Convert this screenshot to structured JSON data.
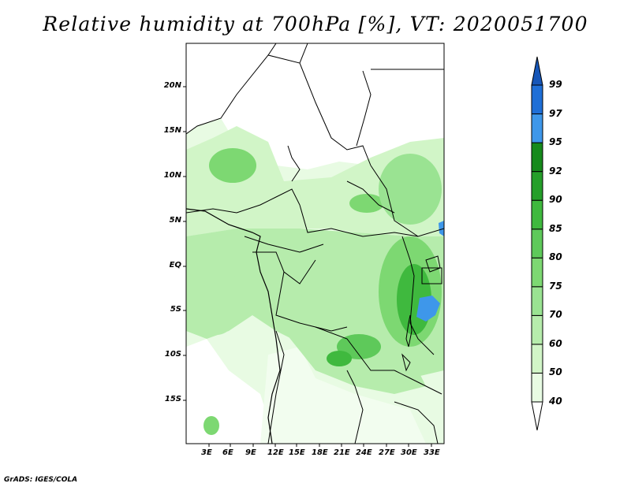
{
  "title": "Relative humidity at 700hPa [%], VT: 2020051700",
  "credit": "GrADS: IGES/COLA",
  "map": {
    "lat_labels": [
      "20N",
      "15N",
      "10N",
      "5N",
      "EQ",
      "5S",
      "10S",
      "15S"
    ],
    "lon_labels": [
      "3E",
      "6E",
      "9E",
      "12E",
      "15E",
      "18E",
      "21E",
      "24E",
      "27E",
      "30E",
      "33E"
    ],
    "lon_range": [
      0,
      34.5
    ],
    "lat_range": [
      -19.5,
      24.5
    ]
  },
  "colorbar": {
    "levels": [
      "40",
      "50",
      "60",
      "70",
      "75",
      "80",
      "85",
      "90",
      "92",
      "95",
      "97",
      "99"
    ],
    "colors": [
      "#ffffff",
      "#e8fbe3",
      "#d1f5c7",
      "#b6ecac",
      "#9ae392",
      "#7dd872",
      "#5ec95a",
      "#3fb93e",
      "#259f2a",
      "#168a1c",
      "#3e97ea",
      "#1f6fd7",
      "#1656b8"
    ]
  },
  "chart_data": {
    "type": "heatmap",
    "title": "Relative humidity at 700hPa [%], VT: 2020051700",
    "variable": "Relative humidity at 700hPa",
    "units": "%",
    "valid_time": "2020051700",
    "x_ticks": [
      "3E",
      "6E",
      "9E",
      "12E",
      "15E",
      "18E",
      "21E",
      "24E",
      "27E",
      "30E",
      "33E"
    ],
    "y_ticks": [
      "20N",
      "15N",
      "10N",
      "5N",
      "EQ",
      "5S",
      "10S",
      "15S"
    ],
    "contour_levels": [
      40,
      50,
      60,
      70,
      75,
      80,
      85,
      90,
      92,
      95,
      97,
      99
    ]
  }
}
